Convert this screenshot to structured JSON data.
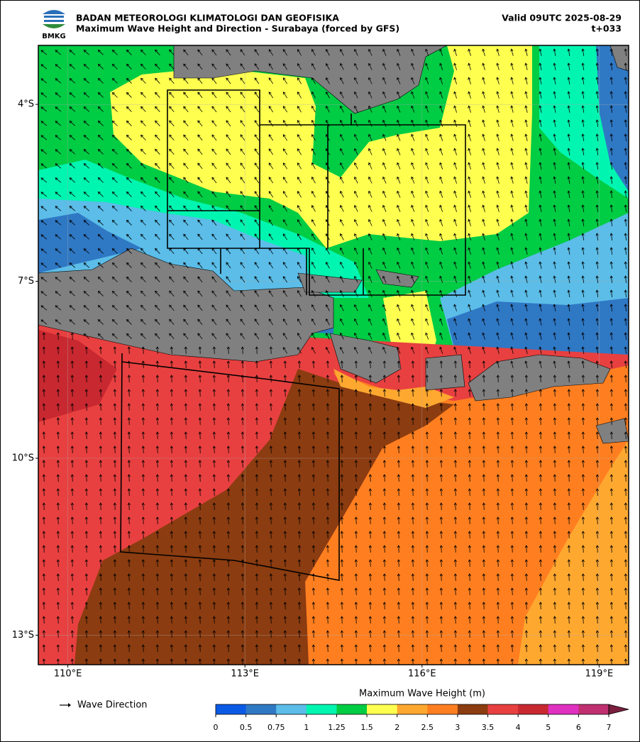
{
  "header": {
    "agency": "BADAN METEOROLOGI KLIMATOLOGI DAN GEOFISIKA",
    "title": "Maximum Wave Height and Direction - Surabaya (forced by GFS)",
    "valid": "Valid 09UTC 2025-08-29",
    "lead": "t+033",
    "logo_text": "BMKG"
  },
  "map": {
    "xlim": [
      109.5,
      119.5
    ],
    "ylim": [
      -13.5,
      -3
    ],
    "xticks": [
      {
        "value": 110,
        "label": "110°E"
      },
      {
        "value": 113,
        "label": "113°E"
      },
      {
        "value": 116,
        "label": "116°E"
      },
      {
        "value": 119,
        "label": "119°E"
      }
    ],
    "yticks": [
      {
        "value": -4,
        "label": "4°S"
      },
      {
        "value": -7,
        "label": "7°S"
      },
      {
        "value": -10,
        "label": "10°S"
      },
      {
        "value": -13,
        "label": "13°S"
      }
    ],
    "grid": true
  },
  "legend": {
    "arrow_label": "Wave Direction"
  },
  "colorbar": {
    "label": "Maximum Wave Height (m)",
    "ticks": [
      0,
      0.5,
      0.75,
      1,
      1.25,
      1.5,
      2,
      2.5,
      3,
      3.5,
      4,
      5,
      6,
      7
    ],
    "colors": [
      "#0a5ae6",
      "#2f78c4",
      "#5bbde8",
      "#00f5b0",
      "#00cc44",
      "#ffff50",
      "#ffa830",
      "#ff7f20",
      "#8b3c10",
      "#e84040",
      "#c82830",
      "#e030c0",
      "#c03070"
    ],
    "extend_color": "#7a1f3d"
  }
}
